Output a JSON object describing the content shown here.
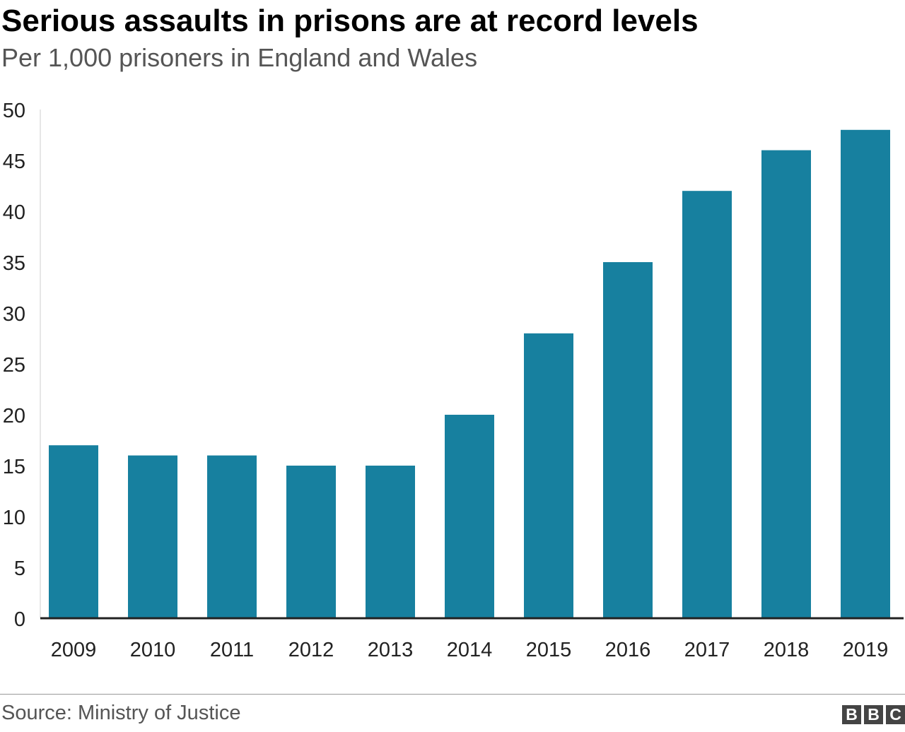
{
  "header": {
    "title": "Serious assaults in prisons are at record levels",
    "subtitle": "Per 1,000 prisoners in England and Wales"
  },
  "footer": {
    "source": "Source: Ministry of Justice",
    "logo_letters": [
      "B",
      "B",
      "C"
    ]
  },
  "colors": {
    "bar": "#17809f",
    "axis": "#222222",
    "gridline": "#dddddd"
  },
  "chart_data": {
    "type": "bar",
    "categories": [
      "2009",
      "2010",
      "2011",
      "2012",
      "2013",
      "2014",
      "2015",
      "2016",
      "2017",
      "2018",
      "2019"
    ],
    "values": [
      17,
      16,
      16,
      15,
      15,
      20,
      28,
      35,
      42,
      46,
      48
    ],
    "ylim": [
      0,
      50
    ],
    "yticks": [
      0,
      5,
      10,
      15,
      20,
      25,
      30,
      35,
      40,
      45,
      50
    ],
    "grid": false
  }
}
